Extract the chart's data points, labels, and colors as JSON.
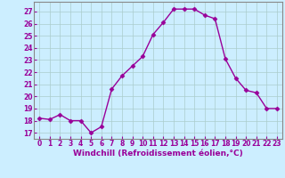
{
  "x": [
    0,
    1,
    2,
    3,
    4,
    5,
    6,
    7,
    8,
    9,
    10,
    11,
    12,
    13,
    14,
    15,
    16,
    17,
    18,
    19,
    20,
    21,
    22,
    23
  ],
  "y": [
    18.2,
    18.1,
    18.5,
    18.0,
    18.0,
    17.0,
    17.5,
    20.6,
    21.7,
    22.5,
    23.3,
    25.1,
    26.1,
    27.2,
    27.2,
    27.2,
    26.7,
    26.4,
    23.1,
    21.5,
    20.5,
    20.3,
    19.0,
    19.0
  ],
  "line_color": "#990099",
  "marker": "D",
  "marker_size": 2.5,
  "bg_color": "#cceeff",
  "grid_color": "#aacccc",
  "xlabel": "Windchill (Refroidissement éolien,°C)",
  "ylim": [
    16.5,
    27.8
  ],
  "xlim": [
    -0.5,
    23.5
  ],
  "yticks": [
    17,
    18,
    19,
    20,
    21,
    22,
    23,
    24,
    25,
    26,
    27
  ],
  "xticks": [
    0,
    1,
    2,
    3,
    4,
    5,
    6,
    7,
    8,
    9,
    10,
    11,
    12,
    13,
    14,
    15,
    16,
    17,
    18,
    19,
    20,
    21,
    22,
    23
  ],
  "tick_label_size": 5.5,
  "xlabel_size": 6.5,
  "tick_color": "#990099",
  "label_color": "#990099",
  "spine_color": "#888888",
  "linewidth": 1.0
}
